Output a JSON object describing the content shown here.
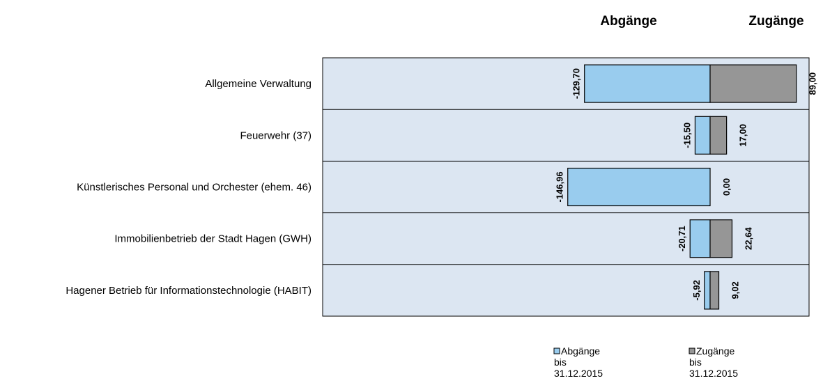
{
  "chart_data": {
    "type": "bar",
    "orientation": "horizontal",
    "stacked": "diverging",
    "categories": [
      "Allgemeine Verwaltung",
      "Feuerwehr (37)",
      "Künstlerisches Personal und Orchester (ehem. 46)",
      "Immobilienbetrieb der Stadt Hagen (GWH)",
      "Hagener Betrieb für Informationstechnologie (HABIT)"
    ],
    "series": [
      {
        "name": "Abgänge bis 31.12.2015",
        "color": "#99ccee",
        "values": [
          -129.7,
          -15.5,
          -146.96,
          -20.71,
          -5.92
        ],
        "labels": [
          "-129,70",
          "-15,50",
          "-146,96",
          "-20,71",
          "-5,92"
        ]
      },
      {
        "name": "Zugänge bis 31.12.2015",
        "color": "#969696",
        "values": [
          89.0,
          17.0,
          0.0,
          22.64,
          9.02
        ],
        "labels": [
          "89,00",
          "17,00",
          "0,00",
          "22,64",
          "9,02"
        ]
      }
    ],
    "header_left": "Abgänge",
    "header_right": "Zugänge",
    "xlim": [
      -175,
      100
    ],
    "grid": false,
    "legend_position": "bottom-right",
    "legend": [
      {
        "lines": [
          "Abgänge",
          "bis",
          "31.12.2015"
        ]
      },
      {
        "lines": [
          "Zugänge",
          "bis",
          "31.12.2015"
        ]
      }
    ],
    "plot_background": "#dce6f2"
  }
}
